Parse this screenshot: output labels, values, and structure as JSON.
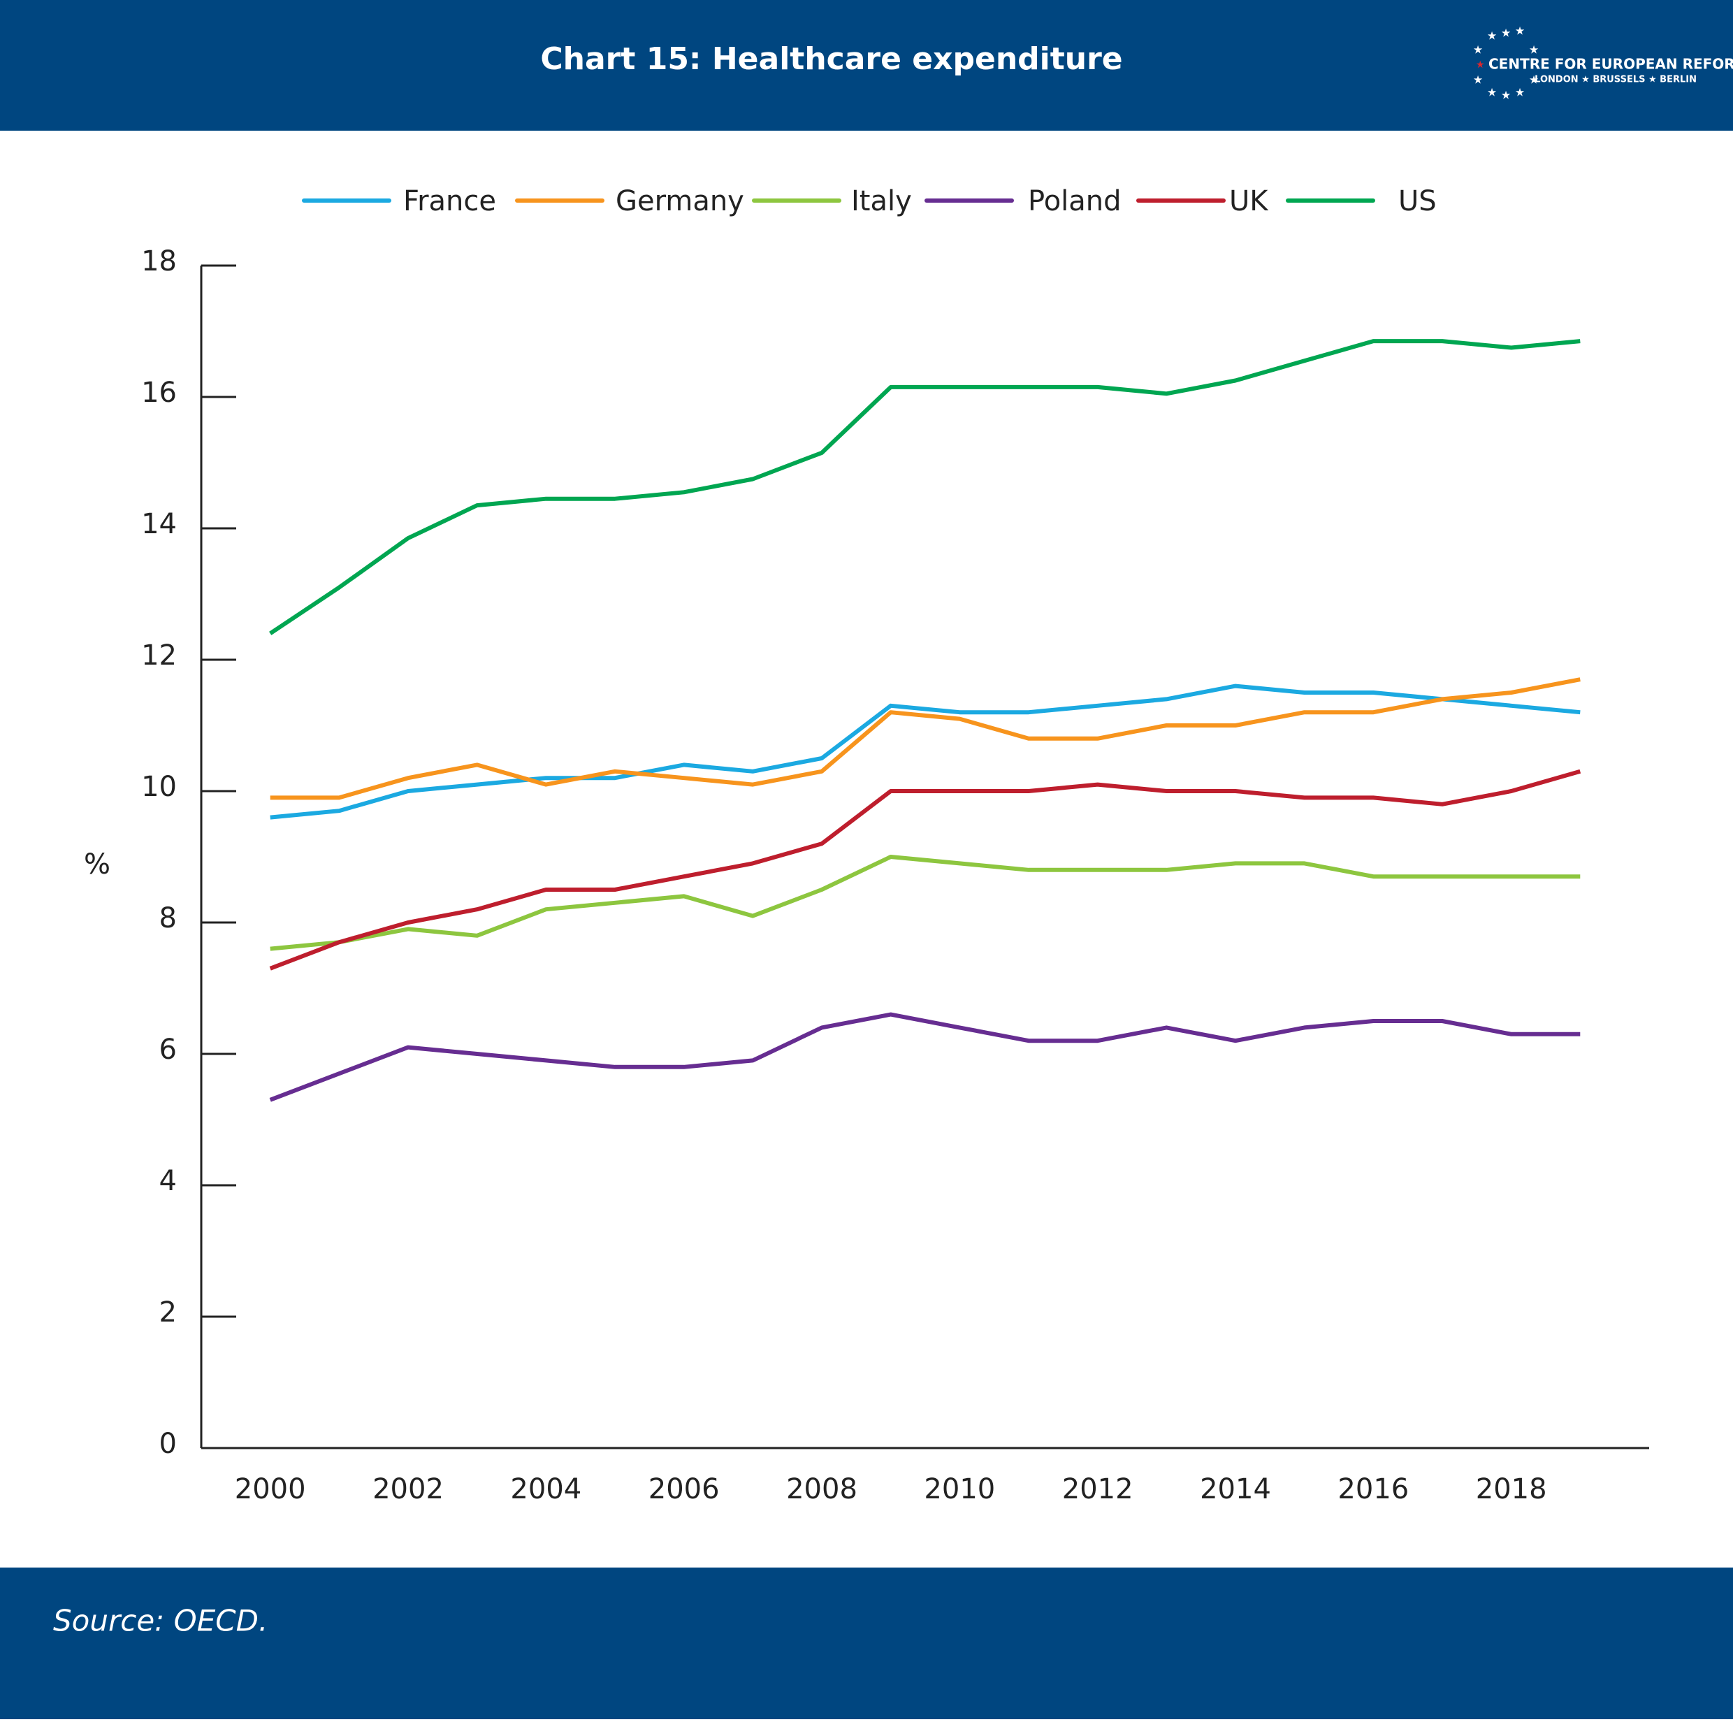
{
  "chart_data": {
    "type": "line",
    "title": "Chart 15: Healthcare expenditure",
    "ylabel": "%",
    "source": "Source: OECD.",
    "x": [
      2000,
      2001,
      2002,
      2003,
      2004,
      2005,
      2006,
      2007,
      2008,
      2009,
      2010,
      2011,
      2012,
      2013,
      2014,
      2015,
      2016,
      2017,
      2018,
      2019
    ],
    "xlim": [
      1999,
      2020
    ],
    "xticks": [
      2000,
      2002,
      2004,
      2006,
      2008,
      2010,
      2012,
      2014,
      2016,
      2018
    ],
    "ylim": [
      0,
      18
    ],
    "yticks": [
      0,
      2,
      4,
      6,
      8,
      10,
      12,
      14,
      16,
      18
    ],
    "series": [
      {
        "name": "France",
        "color": "#1ba9e1",
        "values": [
          9.6,
          9.7,
          10.0,
          10.1,
          10.2,
          10.2,
          10.4,
          10.3,
          10.5,
          11.3,
          11.2,
          11.2,
          11.3,
          11.4,
          11.6,
          11.5,
          11.5,
          11.4,
          11.3,
          11.2
        ]
      },
      {
        "name": "Germany",
        "color": "#f7941d",
        "values": [
          9.9,
          9.9,
          10.2,
          10.4,
          10.1,
          10.3,
          10.2,
          10.1,
          10.3,
          11.2,
          11.1,
          10.8,
          10.8,
          11.0,
          11.0,
          11.2,
          11.2,
          11.4,
          11.5,
          11.7
        ]
      },
      {
        "name": "Italy",
        "color": "#8dc63f",
        "values": [
          7.6,
          7.7,
          7.9,
          7.8,
          8.2,
          8.3,
          8.4,
          8.1,
          8.5,
          9.0,
          8.9,
          8.8,
          8.8,
          8.8,
          8.9,
          8.9,
          8.7,
          8.7,
          8.7,
          8.7
        ]
      },
      {
        "name": "Poland",
        "color": "#662d91",
        "values": [
          5.3,
          5.7,
          6.1,
          6.0,
          5.9,
          5.8,
          5.8,
          5.9,
          6.4,
          6.6,
          6.4,
          6.2,
          6.2,
          6.4,
          6.2,
          6.4,
          6.5,
          6.5,
          6.3,
          6.3
        ]
      },
      {
        "name": "UK",
        "color": "#be1e2d",
        "values": [
          7.3,
          7.7,
          8.0,
          8.2,
          8.5,
          8.5,
          8.7,
          8.9,
          9.2,
          10.0,
          10.0,
          10.0,
          10.1,
          10.0,
          10.0,
          9.9,
          9.9,
          9.8,
          10.0,
          10.3
        ]
      },
      {
        "name": "US",
        "color": "#00a651",
        "values": [
          12.4,
          13.1,
          13.85,
          14.35,
          14.45,
          14.45,
          14.55,
          14.75,
          15.15,
          16.15,
          16.15,
          16.15,
          16.15,
          16.05,
          16.25,
          16.55,
          16.85,
          16.85,
          16.75,
          16.85
        ]
      }
    ]
  },
  "logo": {
    "name": "CENTRE FOR EUROPEAN REFORM",
    "cities": "LONDON ★ BRUSSELS ★ BERLIN"
  }
}
